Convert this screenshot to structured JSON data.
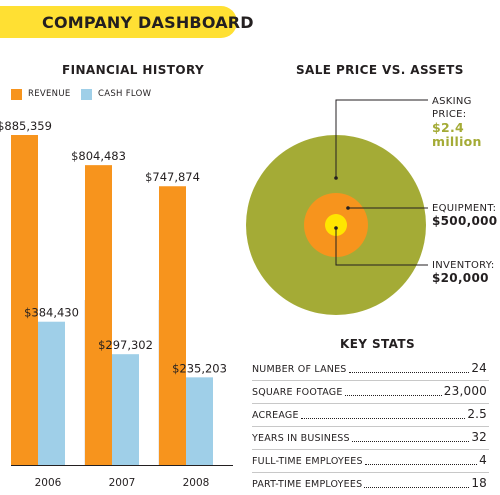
{
  "header": {
    "title": "COMPANY DASHBOARD"
  },
  "financial": {
    "title": "FINANCIAL HISTORY",
    "legend": {
      "revenue": "REVENUE",
      "cash_flow": "CASH FLOW"
    }
  },
  "colors": {
    "revenue": "#f7941d",
    "cash_flow": "#9fcfe8",
    "banner": "#ffe033",
    "outer": "#a4ab36",
    "equipment": "#f7941d",
    "inventory": "#ffe600"
  },
  "chart_data": [
    {
      "type": "bar",
      "categories": [
        "2006",
        "2007",
        "2008"
      ],
      "series": [
        {
          "name": "REVENUE",
          "values": [
            885359,
            804483,
            747874
          ],
          "labels": [
            "$885,359",
            "$804,483",
            "$747,874"
          ]
        },
        {
          "name": "CASH FLOW",
          "values": [
            384430,
            297302,
            235203
          ],
          "labels": [
            "$384,430",
            "$297,302",
            "$235,203"
          ]
        }
      ],
      "ylim": [
        0,
        1000000
      ],
      "title": "FINANCIAL HISTORY"
    },
    {
      "type": "pie",
      "title": "SALE PRICE VS. ASSETS",
      "items": [
        {
          "label": "ASKING PRICE:",
          "display": "$2.4 million",
          "value": 2400000
        },
        {
          "label": "EQUIPMENT:",
          "display": "$500,000",
          "value": 500000
        },
        {
          "label": "INVENTORY:",
          "display": "$20,000",
          "value": 20000
        }
      ]
    }
  ],
  "sale": {
    "title": "SALE PRICE VS. ASSETS",
    "asking_label_1": "ASKING",
    "asking_label_2": "PRICE:",
    "asking_value_1": "$2.4",
    "asking_value_2": "million",
    "equipment_label": "EQUIPMENT:",
    "equipment_value": "$500,000",
    "inventory_label": "INVENTORY:",
    "inventory_value": "$20,000"
  },
  "stats": {
    "title": "KEY STATS",
    "rows": [
      {
        "label": "NUMBER OF LANES",
        "value": "24"
      },
      {
        "label": "SQUARE FOOTAGE",
        "value": "23,000"
      },
      {
        "label": "ACREAGE",
        "value": "2.5"
      },
      {
        "label": "YEARS IN BUSINESS",
        "value": "32"
      },
      {
        "label": "FULL-TIME EMPLOYEES",
        "value": "4"
      },
      {
        "label": "PART-TIME EMPLOYEES",
        "value": "18"
      }
    ]
  }
}
